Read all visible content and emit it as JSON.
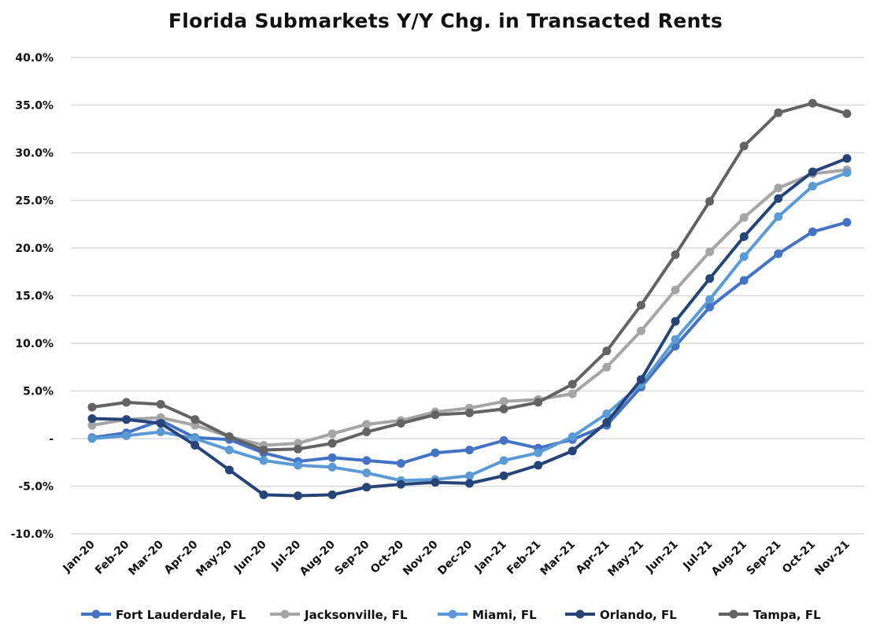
{
  "chart_data": {
    "type": "line",
    "title": "Florida Submarkets Y/Y Chg. in Transacted Rents",
    "xlabel": "",
    "ylabel": "",
    "ylim": [
      -10,
      40
    ],
    "y_tick_values": [
      -10,
      -5,
      0,
      5,
      10,
      15,
      20,
      25,
      30,
      35,
      40
    ],
    "y_tick_labels": [
      "-10.0%",
      "-5.0%",
      "-",
      "5.0%",
      "10.0%",
      "15.0%",
      "20.0%",
      "25.0%",
      "30.0%",
      "35.0%",
      "40.0%"
    ],
    "categories": [
      "Jan-20",
      "Feb-20",
      "Mar-20",
      "Apr-20",
      "May-20",
      "Jun-20",
      "Jul-20",
      "Aug-20",
      "Sep-20",
      "Oct-20",
      "Nov-20",
      "Dec-20",
      "Jan-21",
      "Feb-21",
      "Mar-21",
      "Apr-21",
      "May-21",
      "Jun-21",
      "Jul-21",
      "Aug-21",
      "Sep-21",
      "Oct-21",
      "Nov-21"
    ],
    "legend_position": "bottom",
    "grid": true,
    "series": [
      {
        "name": "Fort Lauderdale, FL",
        "color": "#4472c4",
        "values": [
          0.1,
          0.6,
          1.9,
          0.1,
          -0.1,
          -1.5,
          -2.4,
          -2.0,
          -2.3,
          -2.6,
          -1.5,
          -1.2,
          -0.2,
          -1.0,
          -0.1,
          1.4,
          5.4,
          9.7,
          13.8,
          16.6,
          19.4,
          21.7,
          22.7
        ]
      },
      {
        "name": "Jacksonville, FL",
        "color": "#a5a5a5",
        "values": [
          1.4,
          2.0,
          2.2,
          1.4,
          0.2,
          -0.7,
          -0.5,
          0.5,
          1.5,
          1.9,
          2.8,
          3.2,
          3.9,
          4.1,
          4.7,
          7.5,
          11.3,
          15.6,
          19.6,
          23.2,
          26.3,
          27.8,
          28.2
        ]
      },
      {
        "name": "Miami, FL",
        "color": "#5b9bd5",
        "values": [
          0.0,
          0.3,
          0.7,
          0.0,
          -1.2,
          -2.3,
          -2.8,
          -3.0,
          -3.6,
          -4.4,
          -4.3,
          -3.9,
          -2.3,
          -1.5,
          0.2,
          2.6,
          5.7,
          10.4,
          14.6,
          19.1,
          23.3,
          26.5,
          27.9
        ]
      },
      {
        "name": "Orlando, FL",
        "color": "#264478",
        "values": [
          2.1,
          2.0,
          1.6,
          -0.7,
          -3.3,
          -5.9,
          -6.0,
          -5.9,
          -5.1,
          -4.8,
          -4.6,
          -4.7,
          -3.9,
          -2.8,
          -1.3,
          1.7,
          6.2,
          12.3,
          16.8,
          21.2,
          25.2,
          28.0,
          29.4
        ]
      },
      {
        "name": "Tampa, FL",
        "color": "#636363",
        "values": [
          3.3,
          3.8,
          3.6,
          2.0,
          0.2,
          -1.2,
          -1.1,
          -0.5,
          0.7,
          1.6,
          2.5,
          2.7,
          3.1,
          3.8,
          5.7,
          9.2,
          14.0,
          19.3,
          24.9,
          30.7,
          34.2,
          35.2,
          34.1
        ]
      }
    ]
  }
}
